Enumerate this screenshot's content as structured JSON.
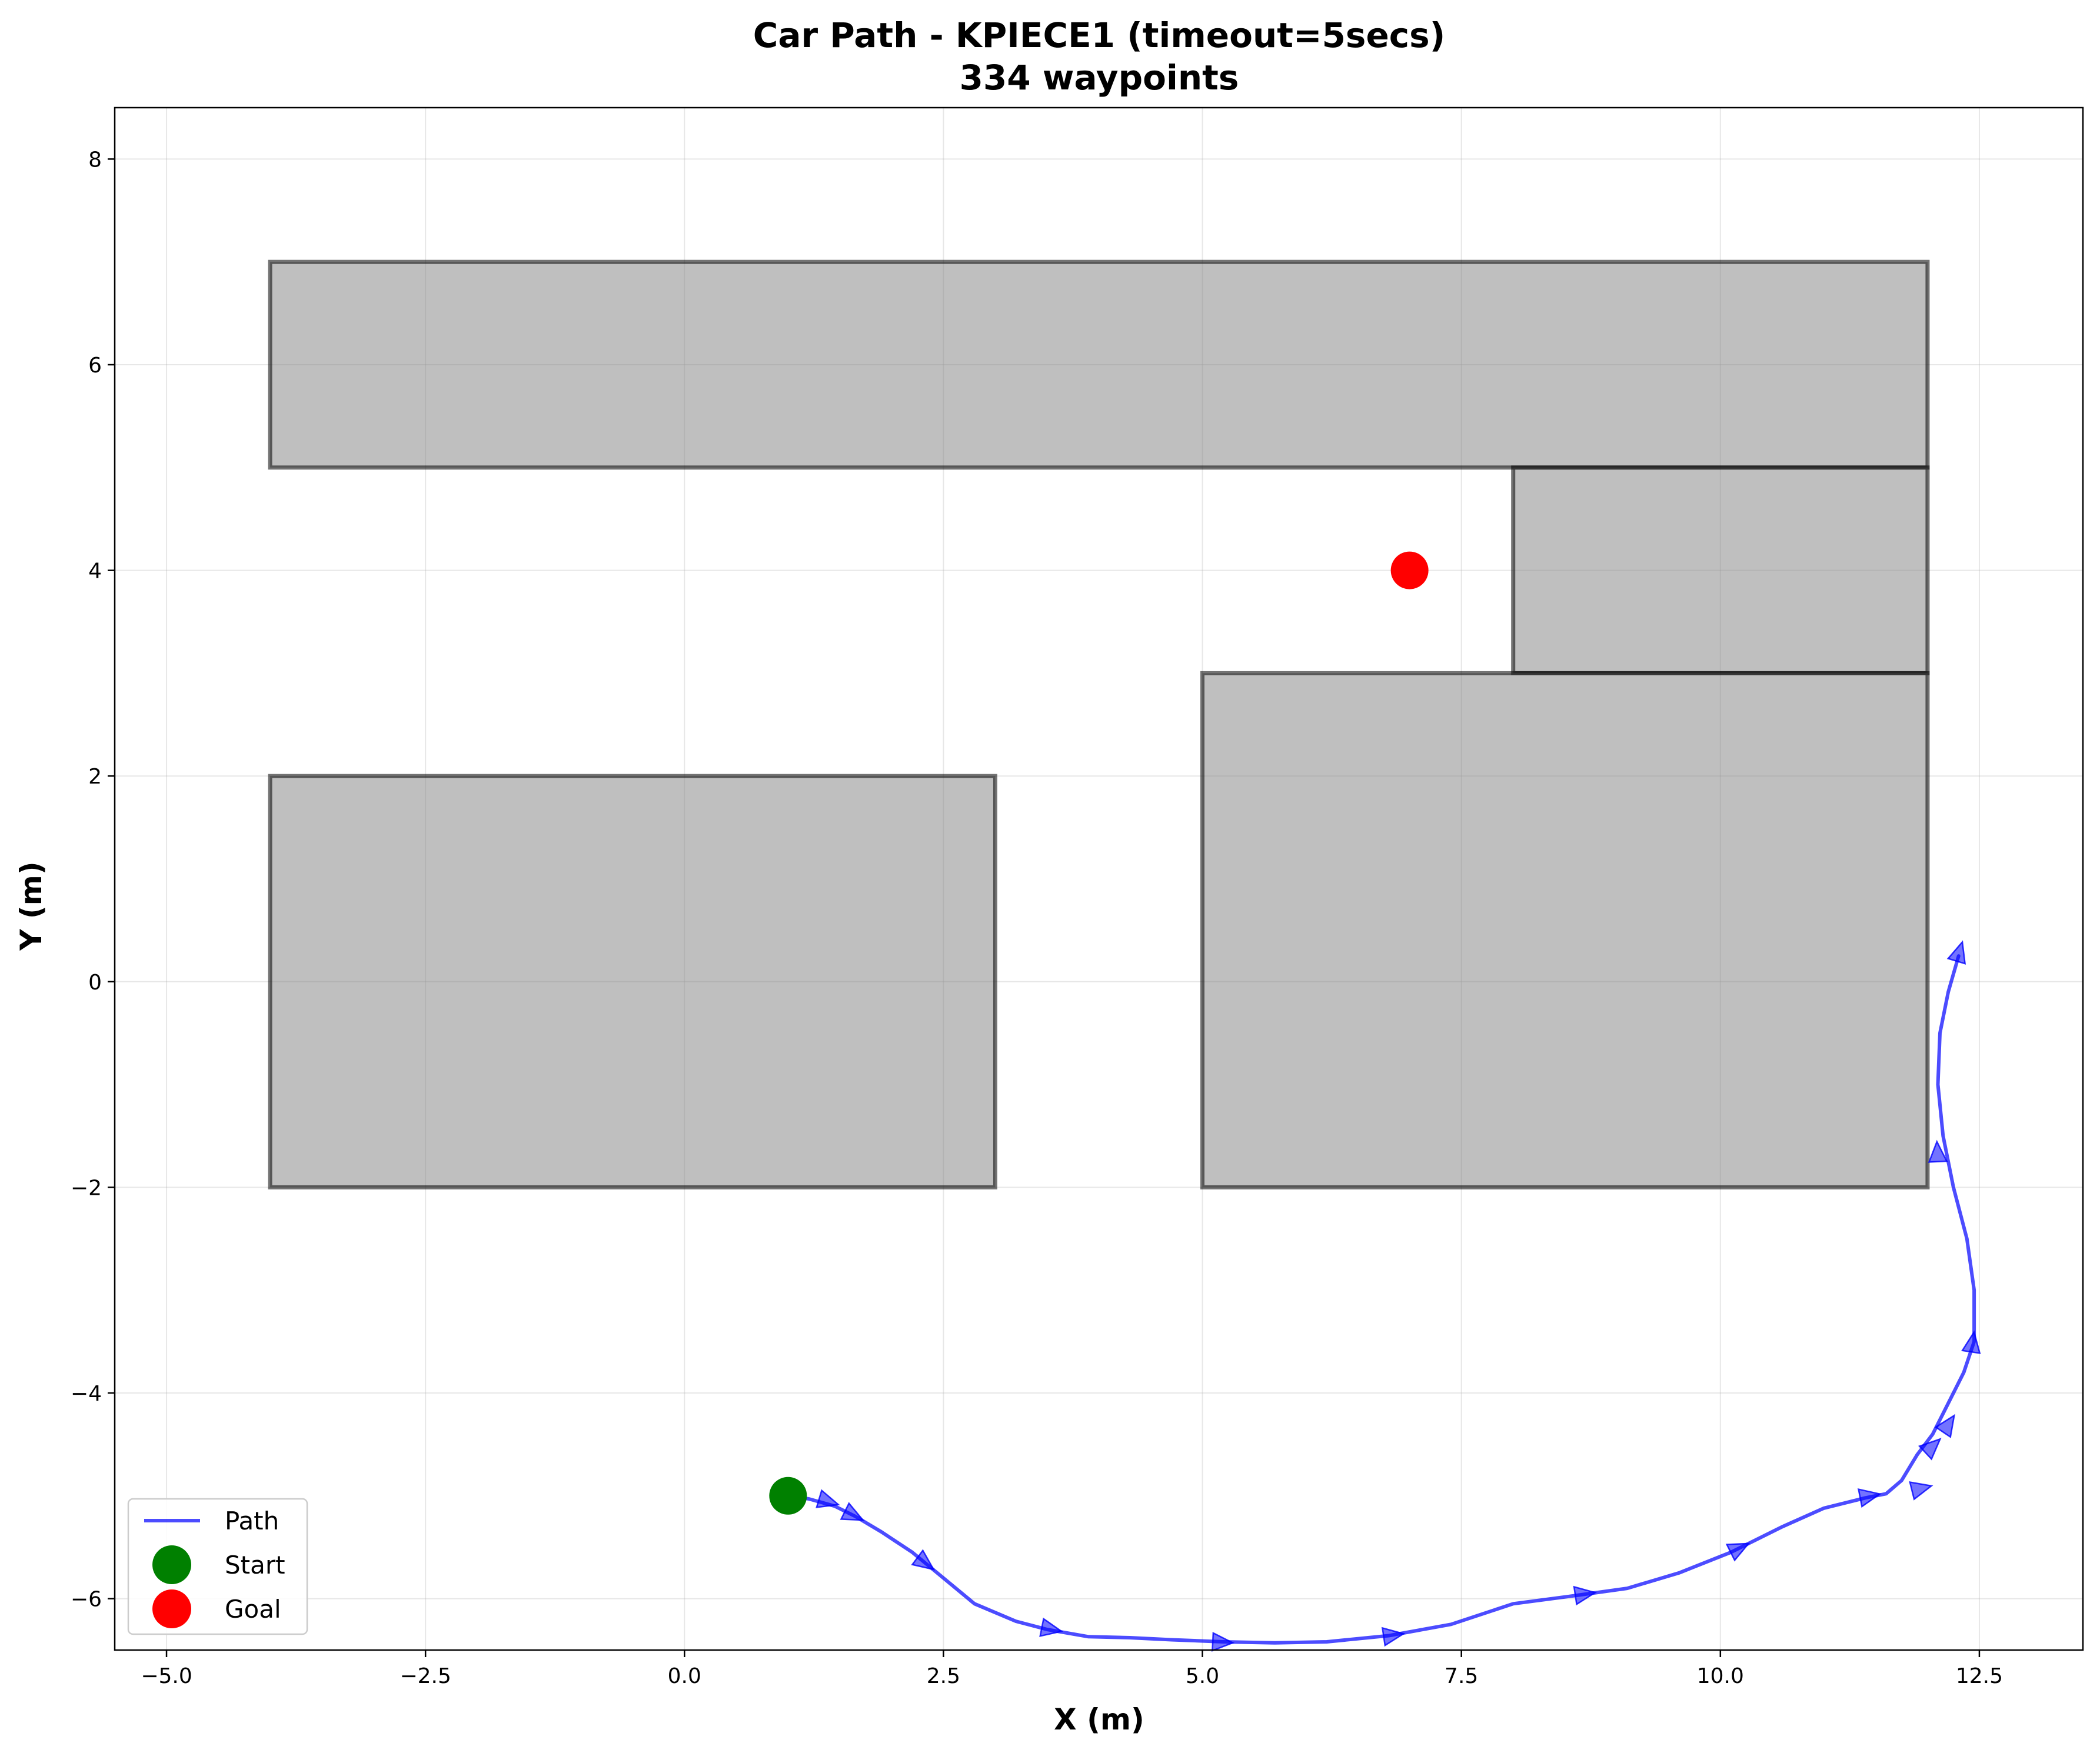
{
  "chart_data": {
    "type": "line",
    "title_line1": "Car Path - KPIECE1 (timeout=5secs)",
    "title_line2": "334 waypoints",
    "xlabel": "X (m)",
    "ylabel": "Y (m)",
    "xlim": [
      -5.5,
      13.5
    ],
    "ylim": [
      -6.5,
      8.5
    ],
    "xticks": [
      -5.0,
      -2.5,
      0.0,
      2.5,
      5.0,
      7.5,
      10.0,
      12.5
    ],
    "xtick_labels": [
      "−5.0",
      "−2.5",
      "0.0",
      "2.5",
      "5.0",
      "7.5",
      "10.0",
      "12.5"
    ],
    "yticks": [
      -6,
      -4,
      -2,
      0,
      2,
      4,
      6,
      8
    ],
    "ytick_labels": [
      "−6",
      "−4",
      "−2",
      "0",
      "2",
      "4",
      "6",
      "8"
    ],
    "grid": true,
    "obstacles": [
      {
        "x": -4,
        "y": 5,
        "w": 16,
        "h": 2
      },
      {
        "x": 8,
        "y": 3,
        "w": 4,
        "h": 2
      },
      {
        "x": -4,
        "y": -2,
        "w": 7,
        "h": 4
      },
      {
        "x": 5,
        "y": -2,
        "w": 7,
        "h": 5
      }
    ],
    "path": {
      "name": "Path",
      "color": "#0000ff",
      "x": [
        1.0,
        1.2,
        1.45,
        1.65,
        1.9,
        2.2,
        2.5,
        2.8,
        3.2,
        3.5,
        3.9,
        4.3,
        4.7,
        5.2,
        5.7,
        6.2,
        6.8,
        7.4,
        8.0,
        8.6,
        9.1,
        9.6,
        10.1,
        10.6,
        11.0,
        11.4,
        11.6,
        11.75,
        11.9,
        12.05,
        12.2,
        12.35,
        12.45,
        12.45,
        12.38,
        12.25,
        12.15,
        12.1,
        12.12,
        12.2,
        12.3
      ],
      "y": [
        -5.0,
        -5.03,
        -5.1,
        -5.2,
        -5.35,
        -5.55,
        -5.8,
        -6.05,
        -6.22,
        -6.3,
        -6.37,
        -6.38,
        -6.4,
        -6.42,
        -6.43,
        -6.42,
        -6.36,
        -6.25,
        -6.05,
        -5.97,
        -5.9,
        -5.75,
        -5.55,
        -5.3,
        -5.12,
        -5.02,
        -4.98,
        -4.85,
        -4.6,
        -4.4,
        -4.1,
        -3.8,
        -3.5,
        -3.0,
        -2.5,
        -2.0,
        -1.5,
        -1.0,
        -0.5,
        -0.1,
        0.25
      ]
    },
    "arrows": [
      {
        "x": 1.3,
        "y": -5.03,
        "dx": 0.2,
        "dy": -0.06
      },
      {
        "x": 1.55,
        "y": -5.15,
        "dx": 0.2,
        "dy": -0.1
      },
      {
        "x": 2.25,
        "y": -5.6,
        "dx": 0.2,
        "dy": -0.15
      },
      {
        "x": 3.45,
        "y": -6.28,
        "dx": 0.2,
        "dy": -0.04
      },
      {
        "x": 5.1,
        "y": -6.42,
        "dx": 0.2,
        "dy": -0.01
      },
      {
        "x": 6.75,
        "y": -6.37,
        "dx": 0.2,
        "dy": 0.03
      },
      {
        "x": 8.6,
        "y": -5.97,
        "dx": 0.2,
        "dy": 0.03
      },
      {
        "x": 10.1,
        "y": -5.55,
        "dx": 0.2,
        "dy": 0.1
      },
      {
        "x": 11.35,
        "y": -5.02,
        "dx": 0.2,
        "dy": 0.04
      },
      {
        "x": 11.85,
        "y": -4.95,
        "dx": 0.2,
        "dy": 0.05
      },
      {
        "x": 11.98,
        "y": -4.58,
        "dx": 0.15,
        "dy": 0.14
      },
      {
        "x": 12.15,
        "y": -4.38,
        "dx": 0.1,
        "dy": 0.15
      },
      {
        "x": 12.42,
        "y": -3.6,
        "dx": 0.03,
        "dy": 0.2
      },
      {
        "x": 12.1,
        "y": -1.75,
        "dx": -0.01,
        "dy": 0.2
      },
      {
        "x": 12.28,
        "y": 0.2,
        "dx": 0.06,
        "dy": 0.2
      }
    ],
    "start": {
      "name": "Start",
      "x": 1.0,
      "y": -5.0,
      "color": "#008000"
    },
    "goal": {
      "name": "Goal",
      "x": 7.0,
      "y": 4.0,
      "color": "#ff0000"
    },
    "legend": {
      "position": "bottom-left",
      "entries": [
        "Path",
        "Start",
        "Goal"
      ]
    }
  }
}
